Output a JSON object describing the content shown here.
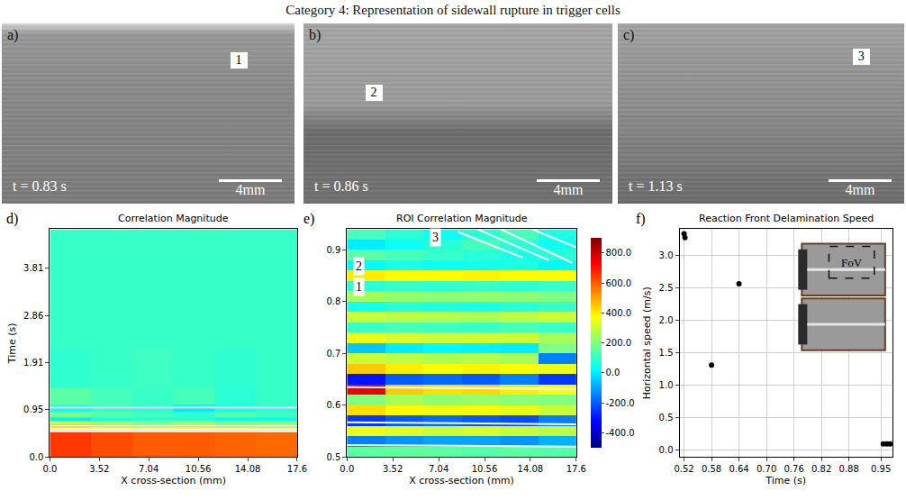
{
  "title": "Category 4: Representation of sidewall rupture in trigger cells",
  "images": [
    {
      "letter": "a)",
      "marker": "1",
      "time": "t = 0.83 s",
      "scale_bar": "4mm"
    },
    {
      "letter": "b)",
      "marker": "2",
      "time": "t = 0.86 s",
      "scale_bar": "4mm"
    },
    {
      "letter": "c)",
      "marker": "3",
      "time": "t = 1.13 s",
      "scale_bar": "4mm"
    }
  ],
  "chart_data": [
    {
      "type": "heatmap",
      "letter": "d)",
      "title": "Correlation Magnitude",
      "x_label": "X cross-section (mm)",
      "y_label": "Time (s)",
      "xlim": [
        0,
        17.6
      ],
      "ylim": [
        0,
        4.6
      ],
      "xticks": [
        {
          "value": 0,
          "label": "0.0"
        },
        3.52,
        7.04,
        10.56,
        14.08,
        17.6
      ],
      "yticks": [
        {
          "value": 0,
          "label": "0.0"
        },
        0.95,
        1.91,
        2.86,
        3.81
      ],
      "zlim": [
        -500,
        900
      ],
      "x_edges": [
        0,
        2.93,
        5.87,
        8.8,
        11.73,
        14.67,
        17.6
      ],
      "y_edges": [
        0,
        0.5,
        0.54,
        0.58,
        0.62,
        0.66,
        0.72,
        0.8,
        0.9,
        1.05,
        1.4,
        2.2,
        3.2,
        4.6
      ],
      "z": [
        [
          650,
          620,
          600,
          600,
          590,
          580
        ],
        [
          250,
          200,
          200,
          220,
          200,
          180
        ],
        [
          -150,
          -100,
          -80,
          -100,
          -120,
          -100
        ],
        [
          400,
          350,
          300,
          330,
          300,
          280
        ],
        [
          -200,
          -150,
          -100,
          -120,
          -150,
          -100
        ],
        [
          300,
          250,
          200,
          250,
          200,
          220
        ],
        [
          0,
          50,
          80,
          60,
          30,
          20
        ],
        [
          200,
          150,
          120,
          100,
          150,
          120
        ],
        [
          50,
          100,
          80,
          0,
          60,
          80
        ],
        [
          150,
          120,
          100,
          120,
          80,
          100
        ],
        [
          90,
          100,
          110,
          100,
          90,
          100
        ],
        [
          100,
          100,
          100,
          100,
          100,
          100
        ],
        [
          100,
          100,
          100,
          100,
          100,
          100
        ]
      ],
      "lines": [
        {
          "x": [
            0,
            17.6
          ],
          "y": [
            0.52,
            0.52
          ]
        },
        {
          "x": [
            0,
            17.6
          ],
          "y": [
            0.565,
            0.565
          ]
        },
        {
          "x": [
            0,
            17.6
          ],
          "y": [
            0.633,
            0.633
          ]
        },
        {
          "x": [
            0,
            17.6
          ],
          "y": [
            1.0,
            1.0
          ]
        }
      ]
    },
    {
      "type": "heatmap",
      "letter": "e)",
      "title": "ROI Correlation Magnitude",
      "x_label": "X cross-section (mm)",
      "xlim": [
        0,
        17.6
      ],
      "ylim": [
        0.5,
        0.94
      ],
      "xticks": [
        {
          "value": 0,
          "label": "0.0"
        },
        3.52,
        7.04,
        10.56,
        14.08,
        17.6
      ],
      "yticks": [
        0.5,
        0.6,
        0.7,
        0.8,
        0.9
      ],
      "zlim": [
        -500,
        900
      ],
      "zticks": [
        {
          "value": -400,
          "label": "-400.0"
        },
        {
          "value": -200,
          "label": "-200.0"
        },
        {
          "value": 0,
          "label": "0.0"
        },
        {
          "value": 200,
          "label": "200.0"
        },
        {
          "value": 400,
          "label": "400.0"
        },
        {
          "value": 600,
          "label": "600.0"
        },
        {
          "value": 800,
          "label": "800.0"
        }
      ],
      "x_edges": [
        0,
        2.93,
        5.87,
        8.8,
        11.73,
        14.67,
        17.6
      ],
      "y_edges": [
        0.5,
        0.52,
        0.54,
        0.56,
        0.58,
        0.6,
        0.62,
        0.64,
        0.66,
        0.68,
        0.7,
        0.72,
        0.74,
        0.76,
        0.78,
        0.8,
        0.82,
        0.84,
        0.86,
        0.88,
        0.9,
        0.92,
        0.94
      ],
      "z": [
        [
          150,
          160,
          150,
          140,
          150,
          140
        ],
        [
          -150,
          -120,
          -100,
          -100,
          -120,
          -80
        ],
        [
          350,
          330,
          300,
          320,
          300,
          280
        ],
        [
          -250,
          -200,
          -180,
          -200,
          -220,
          -150
        ],
        [
          420,
          380,
          350,
          360,
          340,
          300
        ],
        [
          200,
          250,
          220,
          230,
          210,
          200
        ],
        [
          750,
          450,
          420,
          430,
          400,
          380
        ],
        [
          -300,
          -200,
          -180,
          -200,
          -150,
          -250
        ],
        [
          450,
          400,
          380,
          390,
          370,
          350
        ],
        [
          300,
          280,
          260,
          270,
          250,
          -150
        ],
        [
          -50,
          0,
          20,
          10,
          0,
          200
        ],
        [
          350,
          320,
          300,
          310,
          300,
          250
        ],
        [
          100,
          120,
          110,
          100,
          120,
          100
        ],
        [
          300,
          280,
          270,
          260,
          280,
          300
        ],
        [
          50,
          80,
          70,
          60,
          80,
          100
        ],
        [
          250,
          230,
          220,
          230,
          220,
          200
        ],
        [
          80,
          100,
          90,
          100,
          90,
          100
        ],
        [
          400,
          380,
          380,
          390,
          380,
          380
        ],
        [
          20,
          60,
          40,
          50,
          60,
          20
        ],
        [
          150,
          120,
          100,
          80,
          60,
          80
        ],
        [
          0,
          40,
          80,
          120,
          80,
          40
        ],
        [
          120,
          80,
          40,
          80,
          120,
          60
        ]
      ],
      "lines": [
        {
          "x": [
            0,
            17.6
          ],
          "y": [
            0.523,
            0.52
          ]
        },
        {
          "x": [
            0,
            17.6
          ],
          "y": [
            0.567,
            0.563
          ]
        },
        {
          "x": [
            0,
            17.6
          ],
          "y": [
            0.635,
            0.631
          ]
        },
        {
          "x": [
            8.5,
            13.5
          ],
          "y": [
            0.935,
            0.885
          ]
        },
        {
          "x": [
            10,
            15.5
          ],
          "y": [
            0.94,
            0.88
          ]
        },
        {
          "x": [
            11.8,
            17.3
          ],
          "y": [
            0.94,
            0.875
          ]
        },
        {
          "x": [
            14.2,
            17.6
          ],
          "y": [
            0.94,
            0.905
          ]
        }
      ],
      "annotations": [
        {
          "text": "1",
          "x": 0.9,
          "y": 0.828
        },
        {
          "text": "2",
          "x": 0.9,
          "y": 0.868
        },
        {
          "text": "3",
          "x": 6.8,
          "y": 0.925
        }
      ]
    },
    {
      "type": "scatter",
      "letter": "f)",
      "title": "Reaction Front Delamination Speed",
      "x_label": "Time (s)",
      "y_label": "Horizontal speed (m/s)",
      "xlim": [
        0.51,
        0.975
      ],
      "ylim": [
        -0.1,
        3.4
      ],
      "xticks": [
        0.52,
        0.58,
        0.64,
        {
          "value": 0.7,
          "label": "0.70"
        },
        0.76,
        0.82,
        0.88,
        0.95
      ],
      "yticks": [
        {
          "value": 0,
          "label": "0.0"
        },
        0.5,
        {
          "value": 1,
          "label": "1.0"
        },
        1.5,
        {
          "value": 2,
          "label": "2.0"
        },
        2.5,
        {
          "value": 3,
          "label": "3.0"
        }
      ],
      "x": [
        0.52,
        0.522,
        0.58,
        0.64,
        0.955,
        0.963,
        0.97
      ],
      "values": [
        3.33,
        3.27,
        1.31,
        2.56,
        0.1,
        0.1,
        0.1
      ],
      "color": "#000000",
      "marker": "circle",
      "grid": true,
      "inset_label": "FoV"
    }
  ]
}
